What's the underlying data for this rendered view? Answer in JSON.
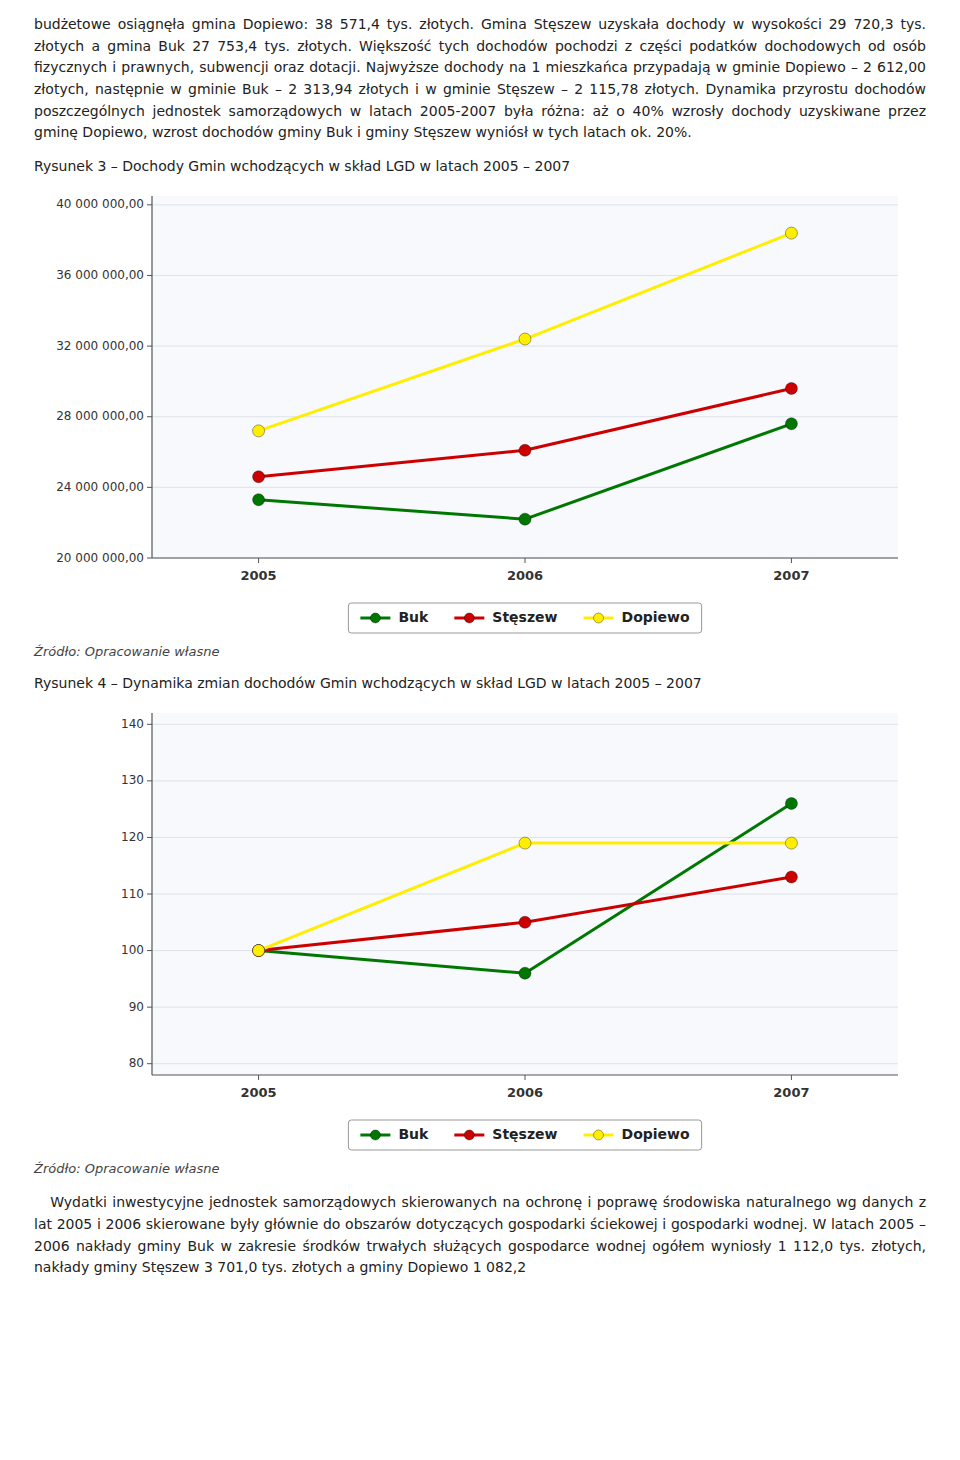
{
  "text_top": "budżetowe osiągnęła gmina Dopiewo: 38 571,4 tys. złotych. Gmina Stęszew uzyskała dochody w wysokości 29 720,3 tys. złotych a gmina Buk 27 753,4 tys. złotych. Większość tych dochodów pochodzi z części podatków dochodowych od osób fizycznych i prawnych, subwencji oraz dotacji. Najwyższe dochody na 1 mieszkańca przypadają w gminie Dopiewo – 2 612,00 złotych, następnie w gminie Buk – 2 313,94 złotych i w gminie Stęszew – 2 115,78 złotych. Dynamika przyrostu dochodów poszczególnych jednostek samorządowych w latach 2005-2007 była różna: aż o 40% wzrosły dochody uzyskiwane przez gminę Dopiewo, wzrost dochodów gminy Buk i gminy Stęszew wyniósł w tych latach ok. 20%.",
  "chart_data": [
    {
      "type": "line",
      "title": "Rysunek 3 – Dochody Gmin wchodzących w skład LGD w latach 2005 – 2007",
      "x": [
        2005,
        2006,
        2007
      ],
      "xlim": [
        2004.6,
        2007.4
      ],
      "xticks": [
        2005,
        2006,
        2007
      ],
      "series": [
        {
          "name": "Buk",
          "color": "#007700",
          "marker": "circle",
          "values": [
            23300000,
            22200000,
            27600000
          ]
        },
        {
          "name": "Stęszew",
          "color": "#cc0000",
          "marker": "circle",
          "values": [
            24600000,
            26100000,
            29600000
          ]
        },
        {
          "name": "Dopiewo",
          "color": "#ffee00",
          "marker": "circle",
          "values": [
            27200000,
            32400000,
            38400000
          ]
        }
      ],
      "ylim": [
        20000000,
        40500000
      ],
      "yticks": [
        {
          "value": 20000000,
          "label": "20 000 000,00"
        },
        {
          "value": 24000000,
          "label": "24 000 000,00"
        },
        {
          "value": 28000000,
          "label": "28 000 000,00"
        },
        {
          "value": 32000000,
          "label": "32 000 000,00"
        },
        {
          "value": 36000000,
          "label": "36 000 000,00"
        },
        {
          "value": 40000000,
          "label": "40 000 000,00"
        }
      ],
      "grid": true,
      "legend": "bottom",
      "annotations": [
        "Źródło: Opracowanie własne"
      ]
    },
    {
      "type": "line",
      "title": "Rysunek 4 – Dynamika zmian dochodów Gmin wchodzących w skład LGD w latach 2005 – 2007",
      "x": [
        2005,
        2006,
        2007
      ],
      "xlim": [
        2004.6,
        2007.4
      ],
      "xticks": [
        2005,
        2006,
        2007
      ],
      "series": [
        {
          "name": "Buk",
          "color": "#007700",
          "marker": "circle",
          "values": [
            100,
            96,
            126
          ]
        },
        {
          "name": "Stęszew",
          "color": "#cc0000",
          "marker": "circle",
          "values": [
            100,
            105,
            113
          ]
        },
        {
          "name": "Dopiewo",
          "color": "#ffee00",
          "marker": "circle",
          "values": [
            100,
            119,
            119
          ]
        }
      ],
      "ylim": [
        78,
        142
      ],
      "yticks": [
        80,
        90,
        100,
        110,
        120,
        130,
        140
      ],
      "grid": true,
      "legend": "bottom",
      "annotations": [
        "Źródło: Opracowanie własne"
      ]
    }
  ],
  "text_bottom": "   Wydatki inwestycyjne jednostek samorządowych skierowanych na ochronę i poprawę środowiska naturalnego wg danych z lat 2005 i 2006 skierowane były głównie do obszarów dotyczących gospodarki ściekowej i gospodarki wodnej. W latach 2005 – 2006 nakłady gminy Buk w zakresie środków trwałych służących gospodarce wodnej ogółem wyniosły 1 112,0 tys. złotych, nakłady gminy Stęszew 3 701,0 tys. złotych a gminy Dopiewo 1 082,2"
}
